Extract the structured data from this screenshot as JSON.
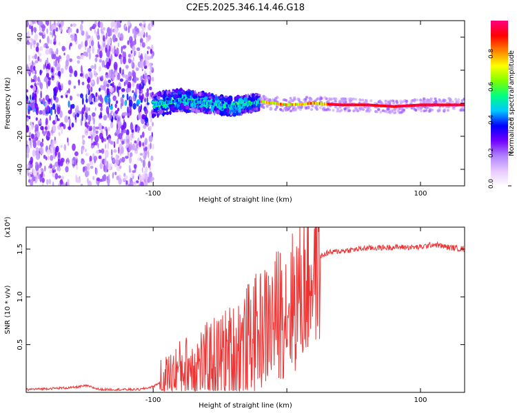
{
  "title": "C2E5.2025.346.14.46.G18",
  "chart_data": [
    {
      "type": "heatmap",
      "name": "spectrogram",
      "xlabel": "Height of straight line (km)",
      "ylabel": "Frequency (Hz)",
      "xlim": [
        -195,
        133
      ],
      "ylim": [
        -50,
        50
      ],
      "xticks": [
        -100,
        0,
        100
      ],
      "xtick_labels": [
        "-100",
        "",
        "100"
      ],
      "yticks": [
        -40,
        -20,
        0,
        20,
        40
      ],
      "ytick_labels": [
        "-40",
        "-20",
        "0",
        "20",
        "40"
      ],
      "colorbar": {
        "label": "Normalized spectral amplitude",
        "range": [
          0,
          1
        ],
        "ticks": [
          0.0,
          0.2,
          0.4,
          0.6,
          0.8
        ],
        "tick_labels": [
          "0.0",
          "0.2",
          "0.4",
          "0.6",
          "0.8"
        ],
        "colors": [
          "#ffffff",
          "#e8c8ff",
          "#b080ff",
          "#7000ff",
          "#0000ff",
          "#00c8ff",
          "#00ff80",
          "#80ff00",
          "#ffff00",
          "#ff8000",
          "#ff0000",
          "#ff0080"
        ]
      },
      "ridge": {
        "x": [
          -100,
          -80,
          -60,
          -40,
          -20,
          0,
          20,
          40,
          60,
          80,
          100,
          133
        ],
        "freq": [
          -1,
          2,
          0,
          -2,
          1,
          -1,
          0,
          -1,
          -1,
          -2,
          -1,
          -1
        ]
      }
    },
    {
      "type": "line",
      "name": "snr",
      "xlabel": "Height of straight line (km)",
      "ylabel": "SNR (10 * v/v)",
      "y_multiplier": "(x10⁴)",
      "xlim": [
        -195,
        133
      ],
      "ylim": [
        0,
        1.73
      ],
      "xticks": [
        -100,
        0,
        100
      ],
      "xtick_labels": [
        "-100",
        "",
        "100"
      ],
      "yticks": [
        0.5,
        1.0,
        1.5
      ],
      "ytick_labels": [
        "0.5",
        "1.0",
        "1.5"
      ],
      "series_color": "#ee3333",
      "series": [
        {
          "name": "SNR",
          "x": [
            -195,
            -160,
            -150,
            -140,
            -110,
            -100,
            -90,
            -80,
            -60,
            -40,
            -30,
            -20,
            -10,
            -5,
            0,
            5,
            10,
            15,
            20,
            25,
            30,
            40,
            60,
            80,
            100,
            110,
            120,
            133
          ],
          "y": [
            0.03,
            0.05,
            0.07,
            0.03,
            0.03,
            0.06,
            0.15,
            0.25,
            0.32,
            0.42,
            0.55,
            0.65,
            0.75,
            0.85,
            0.9,
            0.95,
            1.05,
            1.15,
            1.3,
            1.42,
            1.46,
            1.48,
            1.51,
            1.52,
            1.52,
            1.55,
            1.52,
            1.5
          ]
        }
      ]
    }
  ]
}
